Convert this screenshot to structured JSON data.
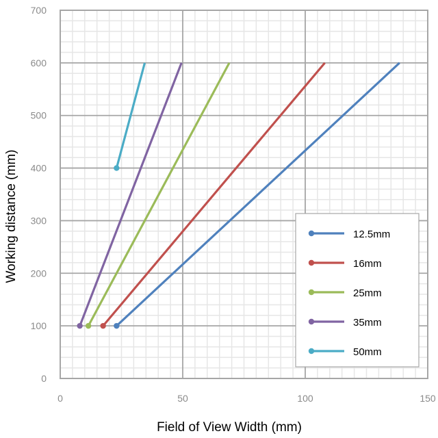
{
  "chart_data": {
    "type": "line",
    "title": "",
    "xlabel": "Field of View Width (mm)",
    "ylabel": "Working distance (mm)",
    "xlim": [
      0,
      150
    ],
    "ylim": [
      0,
      700
    ],
    "x_ticks": [
      "0",
      "50",
      "100",
      "150"
    ],
    "y_ticks": [
      "0",
      "100",
      "200",
      "300",
      "400",
      "500",
      "600",
      "700"
    ],
    "grid": true,
    "legend_position": "bottom-right",
    "series": [
      {
        "name": "12.5mm",
        "color": "#4f81bd",
        "points": [
          [
            23,
            100
          ],
          [
            138.5,
            600
          ]
        ]
      },
      {
        "name": "16mm",
        "color": "#c0504d",
        "points": [
          [
            17.5,
            100
          ],
          [
            108,
            600
          ]
        ]
      },
      {
        "name": "25mm",
        "color": "#9bbb59",
        "points": [
          [
            11.5,
            100
          ],
          [
            69,
            600
          ]
        ]
      },
      {
        "name": "35mm",
        "color": "#8064a2",
        "points": [
          [
            8,
            100
          ],
          [
            49.5,
            600
          ]
        ]
      },
      {
        "name": "50mm",
        "color": "#4bacc6",
        "points": [
          [
            23,
            400
          ],
          [
            34.5,
            600
          ]
        ]
      }
    ]
  }
}
